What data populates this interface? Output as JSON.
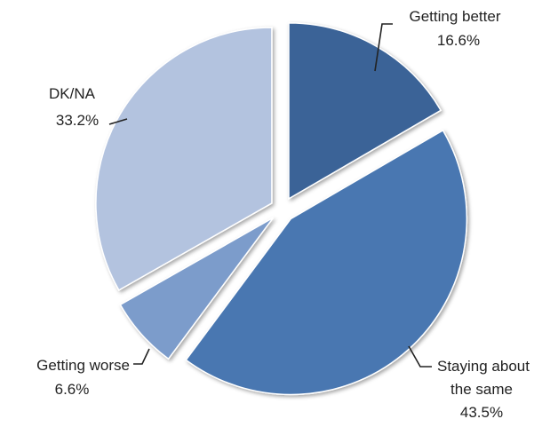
{
  "chart_data": {
    "type": "pie",
    "title": "",
    "slices": [
      {
        "label": "Getting better",
        "value": 16.6,
        "value_label": "16.6%",
        "color": "#3a6397"
      },
      {
        "label": "Staying about the same",
        "value": 43.5,
        "value_label": "43.5%",
        "color": "#4877b1"
      },
      {
        "label": "Getting worse",
        "value": 6.6,
        "value_label": "6.6%",
        "color": "#7c9ccb"
      },
      {
        "label": "DK/NA",
        "value": 33.2,
        "value_label": "33.2%",
        "color": "#b3c3df"
      }
    ],
    "exploded": true,
    "legend": "none"
  }
}
